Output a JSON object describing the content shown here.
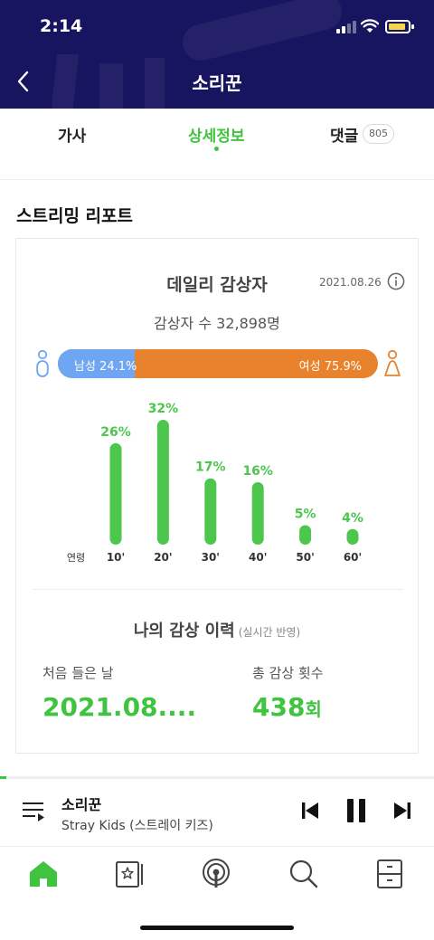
{
  "status_bar": {
    "time": "2:14"
  },
  "header": {
    "title": "소리꾼",
    "back_icon": "chevron-left-icon"
  },
  "tabs": [
    {
      "label": "가사",
      "active": false
    },
    {
      "label": "상세정보",
      "active": true
    },
    {
      "label": "댓글",
      "active": false,
      "badge": "805"
    }
  ],
  "report": {
    "section_title": "스트리밍 리포트",
    "card_title": "데일리 감상자",
    "date": "2021.08.26",
    "listeners": "감상자 수 32,898명",
    "gender": {
      "male_label": "남성 24.1%",
      "female_label": "여성 75.9%",
      "male_fraction": 0.241,
      "male_color": "#6ea6f4",
      "female_color": "#e8822d"
    },
    "age_axis_label": "연령"
  },
  "chart_data": {
    "type": "bar",
    "categories": [
      "10'",
      "20'",
      "30'",
      "40'",
      "50'",
      "60'"
    ],
    "values": [
      26,
      32,
      17,
      16,
      5,
      4
    ],
    "value_labels": [
      "26%",
      "32%",
      "17%",
      "16%",
      "5%",
      "4%"
    ],
    "xlabel": "연령",
    "ylabel": "",
    "ylim": [
      0,
      32
    ],
    "color": "#4cc64c",
    "grid": false
  },
  "history": {
    "title": "나의 감상 이력",
    "subtitle": "(실시간 반영)",
    "first_listen_label": "처음 들은 날",
    "first_listen_value": "2021.08....",
    "total_count_label": "총 감상 횟수",
    "total_count_value": "438",
    "total_count_unit": "회"
  },
  "player": {
    "title": "소리꾼",
    "artist": "Stray Kids (스트레이 키즈)",
    "progress": 0.015
  },
  "bottom_nav": [
    {
      "icon": "home-icon",
      "active": true
    },
    {
      "icon": "library-icon",
      "active": false
    },
    {
      "icon": "podcast-icon",
      "active": false
    },
    {
      "icon": "search-icon",
      "active": false
    },
    {
      "icon": "storage-icon",
      "active": false
    }
  ],
  "colors": {
    "accent": "#3ec43e",
    "header_bg": "#171460"
  }
}
